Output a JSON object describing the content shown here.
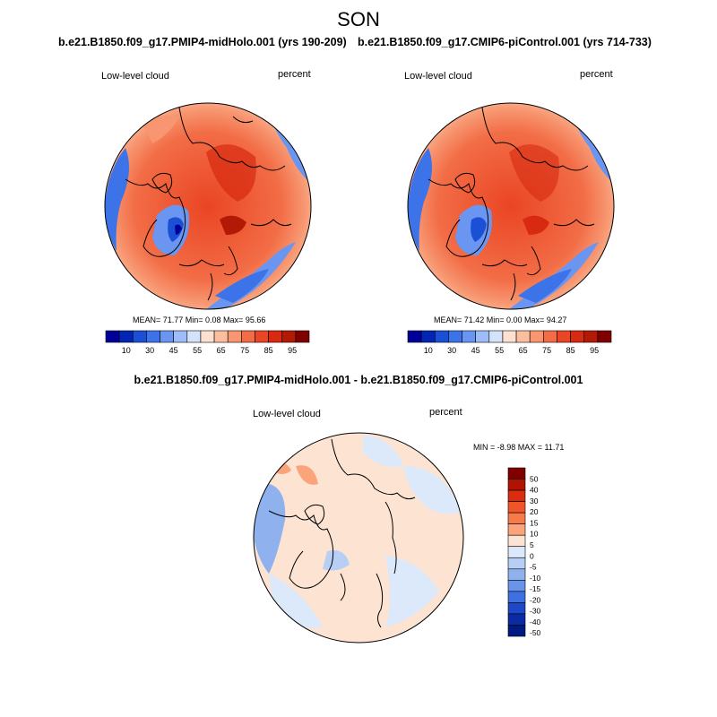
{
  "title": "SON",
  "panels": {
    "left": {
      "title": "b.e21.B1850.f09_g17.PMIP4-midHolo.001 (yrs 190-209)",
      "variable": "Low-level cloud",
      "units": "percent",
      "stats": "MEAN=  71.77  Min=   0.08  Max=  95.66",
      "colorbar_labels": [
        "10",
        "30",
        "45",
        "55",
        "65",
        "75",
        "85",
        "95"
      ]
    },
    "right": {
      "title": "b.e21.B1850.f09_g17.CMIP6-piControl.001 (yrs 714-733)",
      "variable": "Low-level cloud",
      "units": "percent",
      "stats": "MEAN=  71.42  Min=   0.00  Max=  94.27",
      "colorbar_labels": [
        "10",
        "30",
        "45",
        "55",
        "65",
        "75",
        "85",
        "95"
      ]
    },
    "diff": {
      "title": "b.e21.B1850.f09_g17.PMIP4-midHolo.001 - b.e21.B1850.f09_g17.CMIP6-piControl.001",
      "variable": "Low-level cloud",
      "units": "percent",
      "stats": "MIN =  -8.98 MAX =  11.71",
      "colorbar_labels": [
        "50",
        "40",
        "30",
        "20",
        "15",
        "10",
        "5",
        "0",
        "-5",
        "-10",
        "-15",
        "-20",
        "-30",
        "-40",
        "-50"
      ]
    }
  },
  "colors": {
    "abs_scale": [
      "#000099",
      "#0026b3",
      "#1a4fd6",
      "#3d73e8",
      "#6a96f2",
      "#9ebcf7",
      "#d3e3fa",
      "#fde0cf",
      "#fbbfa0",
      "#f79670",
      "#f26d46",
      "#ea4524",
      "#d72a10",
      "#b31a05",
      "#800000"
    ],
    "diff_scale": [
      "#800000",
      "#b01400",
      "#d92d10",
      "#ef5528",
      "#f77a4b",
      "#fba47c",
      "#fde3d2",
      "#dce9fa",
      "#b7cff5",
      "#8fb2ef",
      "#6a93ea",
      "#3f6fe0",
      "#1d48c8",
      "#0a2aa6",
      "#001a80"
    ]
  }
}
